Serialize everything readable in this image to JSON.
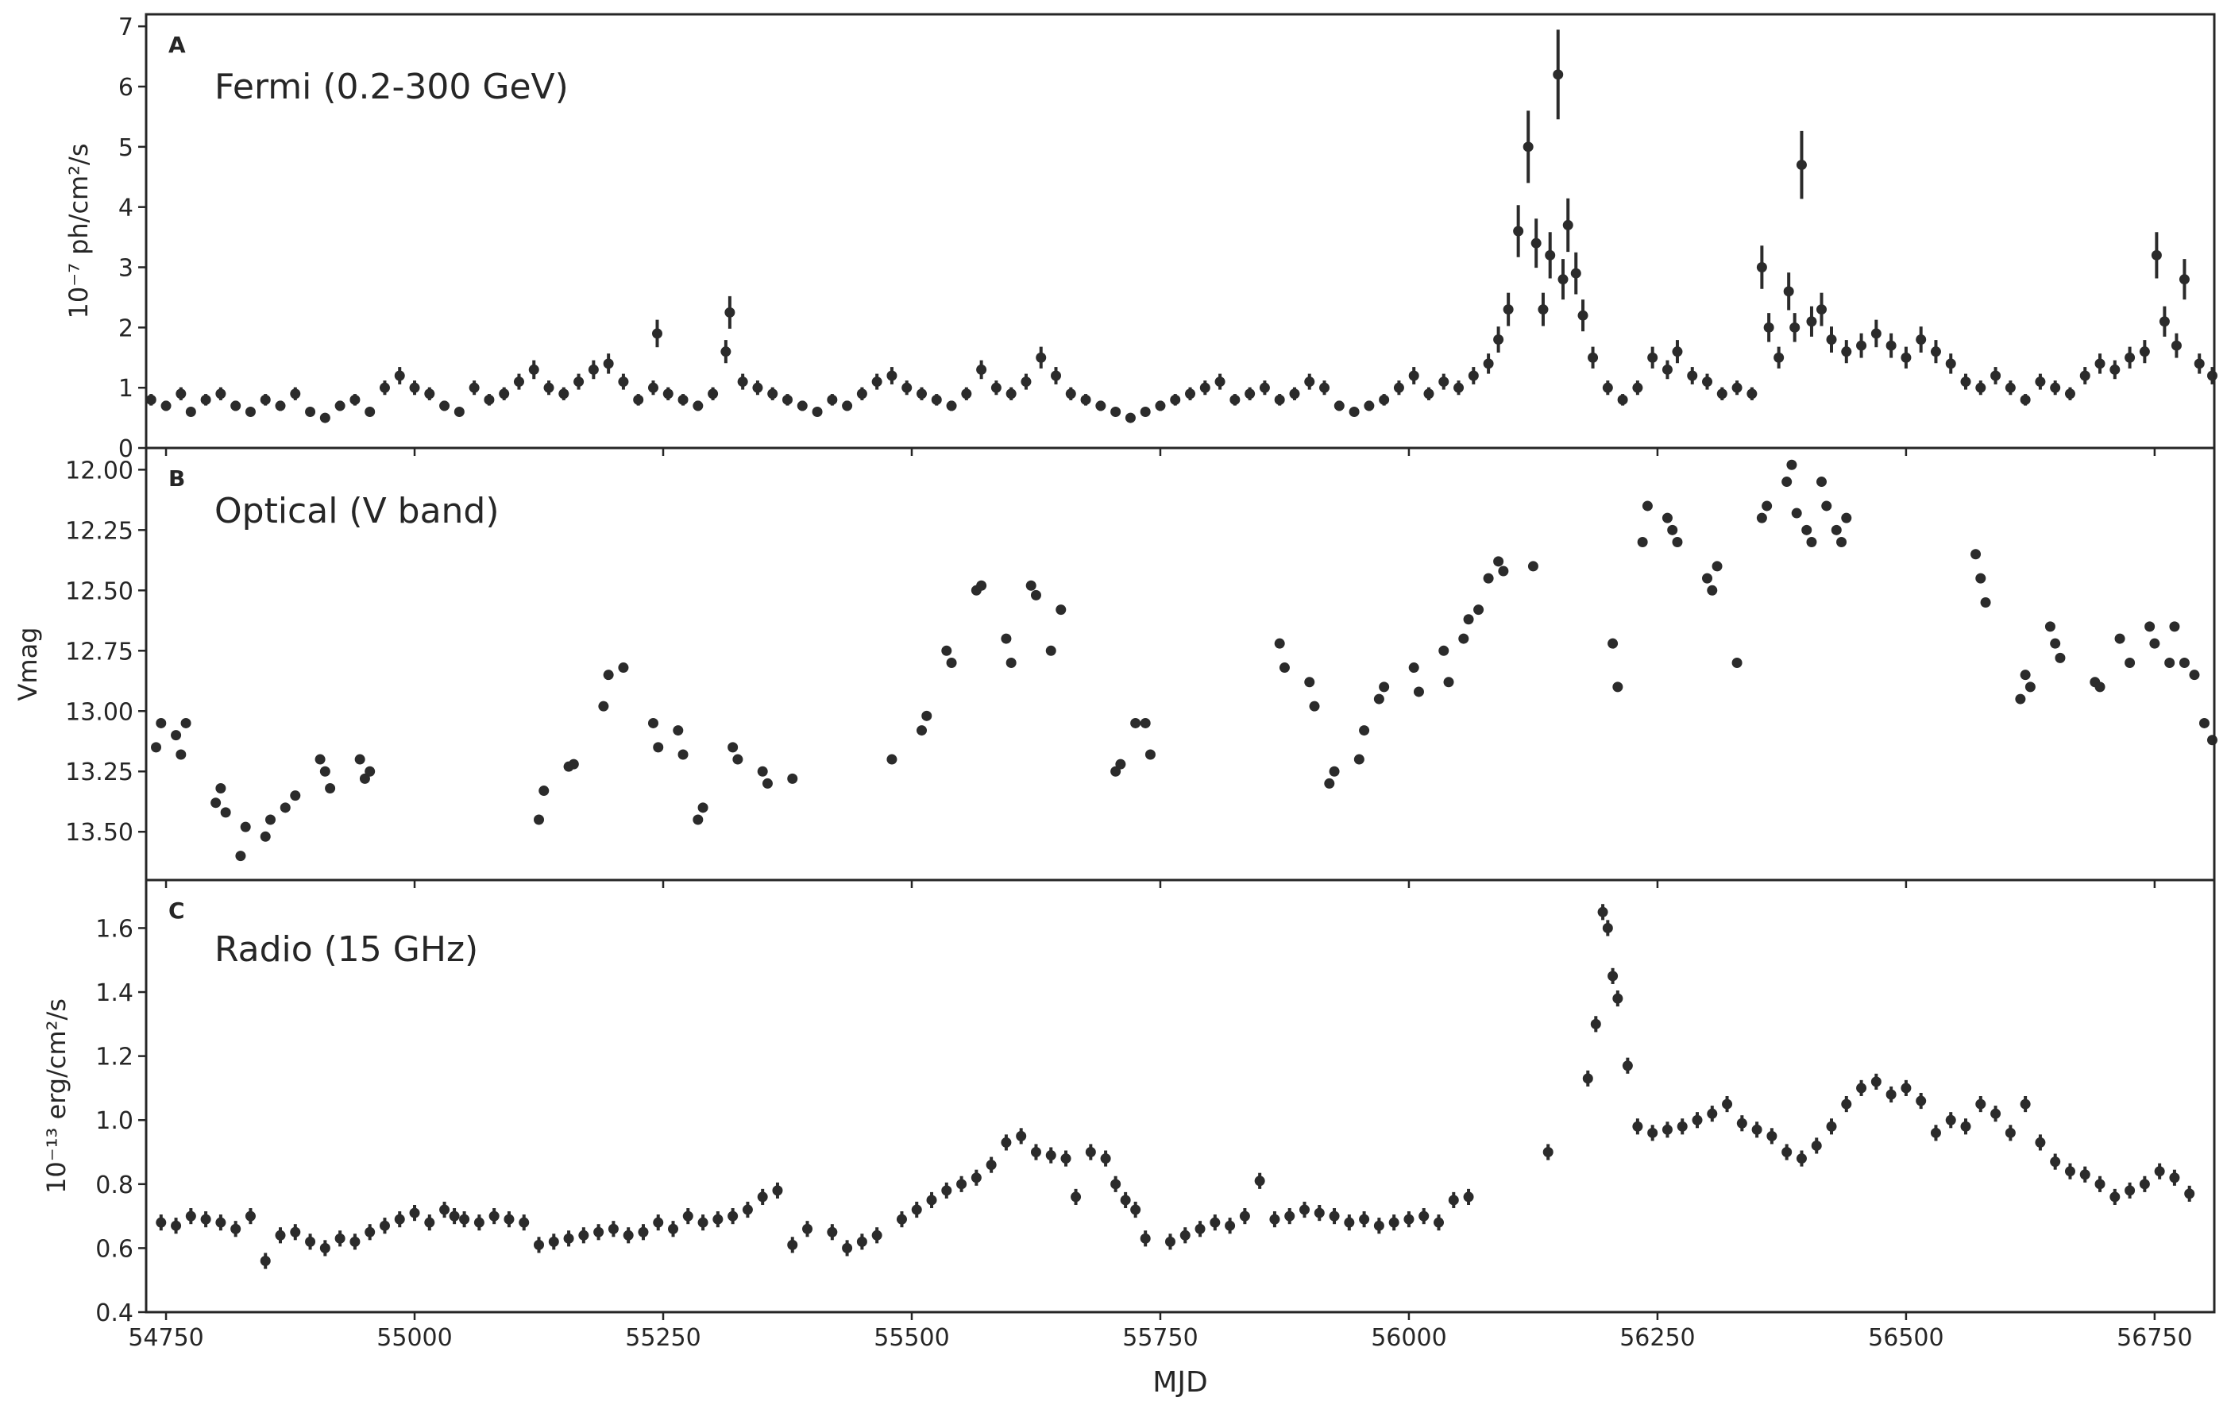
{
  "colors": {
    "marker": "#2b2b2b",
    "frame": "#262626",
    "text": "#262626",
    "background": "#ffffff"
  },
  "figure": {
    "xlabel": "MJD"
  },
  "chart_data": [
    {
      "type": "scatter",
      "panel_label": "A",
      "title": "Fermi (0.2-300 GeV)",
      "ylabel": "10⁻⁷ ph/cm²/s",
      "xlim": [
        54730,
        56810
      ],
      "ylim": [
        0,
        7.2
      ],
      "y_inverted": false,
      "yticks": [
        0,
        1,
        2,
        3,
        4,
        5,
        6,
        7
      ],
      "ytick_labels": [
        "0",
        "1",
        "2",
        "3",
        "4",
        "5",
        "6",
        "7"
      ],
      "xticks": [
        54750,
        55000,
        55250,
        55500,
        55750,
        56000,
        56250,
        56500,
        56750
      ],
      "xtick_labels": [
        "54750",
        "55000",
        "55250",
        "55500",
        "55750",
        "56000",
        "56250",
        "56500",
        "56750"
      ],
      "series": [
        {
          "x": [
            54735,
            54750,
            54765,
            54775,
            54790,
            54805,
            54820,
            54835,
            54850,
            54865,
            54880,
            54895,
            54910,
            54925,
            54940,
            54955,
            54970,
            54985,
            55000,
            55015,
            55030,
            55045,
            55060,
            55075,
            55090,
            55105,
            55120,
            55135,
            55150,
            55165,
            55180,
            55195,
            55210,
            55225,
            55240,
            55244,
            55255,
            55270,
            55285,
            55300,
            55313,
            55317,
            55330,
            55345,
            55360,
            55375,
            55390,
            55405,
            55420,
            55435,
            55450,
            55465,
            55480,
            55495,
            55510,
            55525,
            55540,
            55555,
            55570,
            55585,
            55600,
            55615,
            55630,
            55645,
            55660,
            55675,
            55690,
            55705,
            55720,
            55735,
            55750,
            55765,
            55780,
            55795,
            55810,
            55825,
            55840,
            55855,
            55870,
            55885,
            55900,
            55915,
            55930,
            55945,
            55960,
            55975,
            55990,
            56005,
            56020,
            56035,
            56050,
            56065,
            56080,
            56090,
            56100,
            56110,
            56120,
            56128,
            56135,
            56142,
            56150,
            56155,
            56160,
            56168,
            56175,
            56185,
            56200,
            56215,
            56230,
            56245,
            56260,
            56270,
            56285,
            56300,
            56315,
            56330,
            56345,
            56355,
            56362,
            56372,
            56382,
            56388,
            56395,
            56405,
            56415,
            56425,
            56440,
            56455,
            56470,
            56485,
            56500,
            56515,
            56530,
            56545,
            56560,
            56575,
            56590,
            56605,
            56620,
            56635,
            56650,
            56665,
            56680,
            56695,
            56710,
            56725,
            56740,
            56752,
            56760,
            56772,
            56780,
            56795,
            56808
          ],
          "y": [
            0.8,
            0.7,
            0.9,
            0.6,
            0.8,
            0.9,
            0.7,
            0.6,
            0.8,
            0.7,
            0.9,
            0.6,
            0.5,
            0.7,
            0.8,
            0.6,
            1.0,
            1.2,
            1.0,
            0.9,
            0.7,
            0.6,
            1.0,
            0.8,
            0.9,
            1.1,
            1.3,
            1.0,
            0.9,
            1.1,
            1.3,
            1.4,
            1.1,
            0.8,
            1.0,
            1.9,
            0.9,
            0.8,
            0.7,
            0.9,
            1.6,
            2.25,
            1.1,
            1.0,
            0.9,
            0.8,
            0.7,
            0.6,
            0.8,
            0.7,
            0.9,
            1.1,
            1.2,
            1.0,
            0.9,
            0.8,
            0.7,
            0.9,
            1.3,
            1.0,
            0.9,
            1.1,
            1.5,
            1.2,
            0.9,
            0.8,
            0.7,
            0.6,
            0.5,
            0.6,
            0.7,
            0.8,
            0.9,
            1.0,
            1.1,
            0.8,
            0.9,
            1.0,
            0.8,
            0.9,
            1.1,
            1.0,
            0.7,
            0.6,
            0.7,
            0.8,
            1.0,
            1.2,
            0.9,
            1.1,
            1.0,
            1.2,
            1.4,
            1.8,
            2.3,
            3.6,
            5.0,
            3.4,
            2.3,
            3.2,
            6.2,
            2.8,
            3.7,
            2.9,
            2.2,
            1.5,
            1.0,
            0.8,
            1.0,
            1.5,
            1.3,
            1.6,
            1.2,
            1.1,
            0.9,
            1.0,
            0.9,
            3.0,
            2.0,
            1.5,
            2.6,
            2.0,
            4.7,
            2.1,
            2.3,
            1.8,
            1.6,
            1.7,
            1.9,
            1.7,
            1.5,
            1.8,
            1.6,
            1.4,
            1.1,
            1.0,
            1.2,
            1.0,
            0.8,
            1.1,
            1.0,
            0.9,
            1.2,
            1.4,
            1.3,
            1.5,
            1.6,
            3.2,
            2.1,
            1.7,
            2.8,
            1.4,
            1.2
          ]
        }
      ]
    },
    {
      "type": "scatter",
      "panel_label": "B",
      "title": "Optical (V band)",
      "ylabel": "Vmag",
      "xlim": [
        54730,
        56810
      ],
      "ylim": [
        13.7,
        11.91
      ],
      "y_inverted": true,
      "yticks": [
        12.0,
        12.25,
        12.5,
        12.75,
        13.0,
        13.25,
        13.5
      ],
      "ytick_labels": [
        "12.00",
        "12.25",
        "12.50",
        "12.75",
        "13.00",
        "13.25",
        "13.50"
      ],
      "xticks": [
        54750,
        55000,
        55250,
        55500,
        55750,
        56000,
        56250,
        56500,
        56750
      ],
      "xtick_labels": [
        "54750",
        "55000",
        "55250",
        "55500",
        "55750",
        "56000",
        "56250",
        "56500",
        "56750"
      ],
      "series": [
        {
          "x": [
            54740,
            54745,
            54760,
            54765,
            54770,
            54800,
            54805,
            54810,
            54825,
            54830,
            54850,
            54855,
            54870,
            54880,
            54905,
            54910,
            54915,
            54945,
            54950,
            54955,
            55125,
            55130,
            55155,
            55160,
            55190,
            55195,
            55210,
            55240,
            55245,
            55265,
            55270,
            55285,
            55290,
            55320,
            55325,
            55350,
            55355,
            55380,
            55480,
            55510,
            55515,
            55535,
            55540,
            55565,
            55570,
            55595,
            55600,
            55620,
            55625,
            55640,
            55650,
            55705,
            55710,
            55725,
            55735,
            55740,
            55870,
            55875,
            55900,
            55905,
            55920,
            55925,
            55950,
            55955,
            55970,
            55975,
            56005,
            56010,
            56035,
            56040,
            56055,
            56060,
            56070,
            56080,
            56090,
            56095,
            56125,
            56205,
            56210,
            56235,
            56240,
            56260,
            56265,
            56270,
            56300,
            56305,
            56310,
            56330,
            56355,
            56360,
            56380,
            56385,
            56390,
            56400,
            56405,
            56415,
            56420,
            56430,
            56435,
            56440,
            56570,
            56575,
            56580,
            56615,
            56620,
            56625,
            56645,
            56650,
            56655,
            56690,
            56695,
            56715,
            56725,
            56745,
            56750,
            56765,
            56770,
            56780,
            56790,
            56800,
            56808
          ],
          "y": [
            13.15,
            13.05,
            13.1,
            13.18,
            13.05,
            13.38,
            13.32,
            13.42,
            13.6,
            13.48,
            13.52,
            13.45,
            13.4,
            13.35,
            13.2,
            13.25,
            13.32,
            13.2,
            13.28,
            13.25,
            13.45,
            13.33,
            13.23,
            13.22,
            12.98,
            12.85,
            12.82,
            13.05,
            13.15,
            13.08,
            13.18,
            13.45,
            13.4,
            13.15,
            13.2,
            13.25,
            13.3,
            13.28,
            13.2,
            13.08,
            13.02,
            12.75,
            12.8,
            12.5,
            12.48,
            12.7,
            12.8,
            12.48,
            12.52,
            12.75,
            12.58,
            13.25,
            13.22,
            13.05,
            13.05,
            13.18,
            12.72,
            12.82,
            12.88,
            12.98,
            13.3,
            13.25,
            13.2,
            13.08,
            12.95,
            12.9,
            12.82,
            12.92,
            12.75,
            12.88,
            12.7,
            12.62,
            12.58,
            12.45,
            12.38,
            12.42,
            12.4,
            12.72,
            12.9,
            12.3,
            12.15,
            12.2,
            12.25,
            12.3,
            12.45,
            12.5,
            12.4,
            12.8,
            12.2,
            12.15,
            12.05,
            11.98,
            12.18,
            12.25,
            12.3,
            12.05,
            12.15,
            12.25,
            12.3,
            12.2,
            12.35,
            12.45,
            12.55,
            12.95,
            12.85,
            12.9,
            12.65,
            12.72,
            12.78,
            12.88,
            12.9,
            12.7,
            12.8,
            12.65,
            12.72,
            12.8,
            12.65,
            12.8,
            12.85,
            13.05,
            13.12
          ]
        }
      ]
    },
    {
      "type": "scatter",
      "panel_label": "C",
      "title": "Radio (15 GHz)",
      "ylabel": "10⁻¹³ erg/cm²/s",
      "xlim": [
        54730,
        56810
      ],
      "ylim": [
        0.4,
        1.75
      ],
      "y_inverted": false,
      "yticks": [
        0.4,
        0.6,
        0.8,
        1.0,
        1.2,
        1.4,
        1.6
      ],
      "ytick_labels": [
        "0.4",
        "0.6",
        "0.8",
        "1.0",
        "1.2",
        "1.4",
        "1.6"
      ],
      "xticks": [
        54750,
        55000,
        55250,
        55500,
        55750,
        56000,
        56250,
        56500,
        56750
      ],
      "xtick_labels": [
        "54750",
        "55000",
        "55250",
        "55500",
        "55750",
        "56000",
        "56250",
        "56500",
        "56750"
      ],
      "series": [
        {
          "x": [
            54745,
            54760,
            54775,
            54790,
            54805,
            54820,
            54835,
            54850,
            54865,
            54880,
            54895,
            54910,
            54925,
            54940,
            54955,
            54970,
            54985,
            55000,
            55015,
            55030,
            55040,
            55050,
            55065,
            55080,
            55095,
            55110,
            55125,
            55140,
            55155,
            55170,
            55185,
            55200,
            55215,
            55230,
            55245,
            55260,
            55275,
            55290,
            55305,
            55320,
            55335,
            55350,
            55365,
            55380,
            55395,
            55420,
            55435,
            55450,
            55465,
            55490,
            55505,
            55520,
            55535,
            55550,
            55565,
            55580,
            55595,
            55610,
            55625,
            55640,
            55655,
            55665,
            55680,
            55695,
            55705,
            55715,
            55725,
            55735,
            55760,
            55775,
            55790,
            55805,
            55820,
            55835,
            55850,
            55865,
            55880,
            55895,
            55910,
            55925,
            55940,
            55955,
            55970,
            55985,
            56000,
            56015,
            56030,
            56045,
            56060,
            56140,
            56180,
            56188,
            56195,
            56200,
            56205,
            56210,
            56220,
            56230,
            56245,
            56260,
            56275,
            56290,
            56305,
            56320,
            56335,
            56350,
            56365,
            56380,
            56395,
            56410,
            56425,
            56440,
            56455,
            56470,
            56485,
            56500,
            56515,
            56530,
            56545,
            56560,
            56575,
            56590,
            56605,
            56620,
            56635,
            56650,
            56665,
            56680,
            56695,
            56710,
            56725,
            56740,
            56755,
            56770,
            56785
          ],
          "y": [
            0.68,
            0.67,
            0.7,
            0.69,
            0.68,
            0.66,
            0.7,
            0.56,
            0.64,
            0.65,
            0.62,
            0.6,
            0.63,
            0.62,
            0.65,
            0.67,
            0.69,
            0.71,
            0.68,
            0.72,
            0.7,
            0.69,
            0.68,
            0.7,
            0.69,
            0.68,
            0.61,
            0.62,
            0.63,
            0.64,
            0.65,
            0.66,
            0.64,
            0.65,
            0.68,
            0.66,
            0.7,
            0.68,
            0.69,
            0.7,
            0.72,
            0.76,
            0.78,
            0.61,
            0.66,
            0.65,
            0.6,
            0.62,
            0.64,
            0.69,
            0.72,
            0.75,
            0.78,
            0.8,
            0.82,
            0.86,
            0.93,
            0.95,
            0.9,
            0.89,
            0.88,
            0.76,
            0.9,
            0.88,
            0.8,
            0.75,
            0.72,
            0.63,
            0.62,
            0.64,
            0.66,
            0.68,
            0.67,
            0.7,
            0.81,
            0.69,
            0.7,
            0.72,
            0.71,
            0.7,
            0.68,
            0.69,
            0.67,
            0.68,
            0.69,
            0.7,
            0.68,
            0.75,
            0.76,
            0.9,
            1.13,
            1.3,
            1.65,
            1.6,
            1.45,
            1.38,
            1.17,
            0.98,
            0.96,
            0.97,
            0.98,
            1.0,
            1.02,
            1.05,
            0.99,
            0.97,
            0.95,
            0.9,
            0.88,
            0.92,
            0.98,
            1.05,
            1.1,
            1.12,
            1.08,
            1.1,
            1.06,
            0.96,
            1.0,
            0.98,
            1.05,
            1.02,
            0.96,
            1.05,
            0.93,
            0.87,
            0.84,
            0.83,
            0.8,
            0.76,
            0.78,
            0.8,
            0.84,
            0.82,
            0.77
          ]
        }
      ]
    }
  ]
}
